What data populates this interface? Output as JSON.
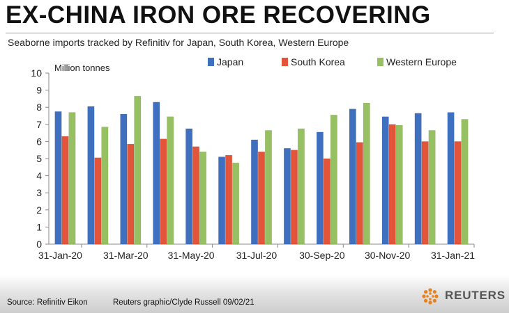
{
  "title": "EX-CHINA IRON ORE RECOVERING",
  "subtitle": "Seaborne imports tracked by Refinitiv for Japan, South Korea, Western Europe",
  "footer": {
    "source": "Source: Refinitiv Eikon",
    "credit": "Reuters graphic/Clyde Russell 09/02/21",
    "brand": "REUTERS"
  },
  "colors": {
    "japan": "#3f6fbf",
    "south_korea": "#e2553a",
    "western_europe": "#96c062"
  },
  "chart_data": {
    "type": "bar",
    "ylabel": "Million tonnes",
    "ylim": [
      0,
      10
    ],
    "yticks": [
      "0",
      "1",
      "2",
      "3",
      "4",
      "5",
      "6",
      "7",
      "8",
      "9",
      "10"
    ],
    "legend_position": "top",
    "categories": [
      "Jan-20",
      "Feb-20",
      "Mar-20",
      "Apr-20",
      "May-20",
      "Jun-20",
      "Jul-20",
      "Aug-20",
      "Sep-20",
      "Oct-20",
      "Nov-20",
      "Dec-20",
      "Jan-21"
    ],
    "xtick_labels": [
      "31-Jan-20",
      "31-Mar-20",
      "31-May-20",
      "31-Jul-20",
      "30-Sep-20",
      "30-Nov-20",
      "31-Jan-21"
    ],
    "series": [
      {
        "name": "Japan",
        "color": "#3f6fbf",
        "values": [
          7.75,
          8.05,
          7.6,
          8.3,
          6.75,
          5.1,
          6.1,
          5.6,
          6.55,
          7.9,
          7.45,
          7.65,
          7.7
        ]
      },
      {
        "name": "South Korea",
        "color": "#e2553a",
        "values": [
          6.3,
          5.05,
          5.85,
          6.15,
          5.7,
          5.2,
          5.4,
          5.5,
          5.0,
          5.95,
          7.0,
          6.0,
          6.0
        ]
      },
      {
        "name": "Western Europe",
        "color": "#96c062",
        "values": [
          7.7,
          6.85,
          8.65,
          7.45,
          5.4,
          4.75,
          6.65,
          6.75,
          7.55,
          8.25,
          6.95,
          6.65,
          7.3
        ]
      }
    ]
  }
}
